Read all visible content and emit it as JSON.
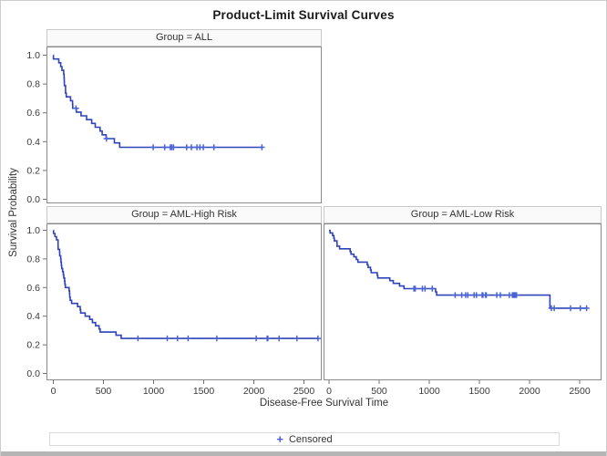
{
  "colors": {
    "curve": "#2e44b8",
    "censor": "#4a63d4",
    "panel_border": "#8a8a8a",
    "header_bg": "#fafafa",
    "header_border": "#c9c9c9",
    "text": "#3a3a3a",
    "tick": "#707070",
    "figure_border": "#cccccc",
    "bottom_bar": "#b5b5b5",
    "background": "#ffffff"
  },
  "legend": {
    "marker_char": "+",
    "label": "Censored"
  },
  "chart_data": {
    "type": "line",
    "subtype": "kaplan-meier-step",
    "title": "Product-Limit Survival Curves",
    "xlabel": "Disease-Free Survival Time",
    "ylabel": "Survival Probability",
    "xlim": [
      0,
      2700
    ],
    "ylim": [
      0,
      1.0
    ],
    "x_ticks": [
      0,
      500,
      1000,
      1500,
      2000,
      2500
    ],
    "y_ticks": [
      "1.0",
      "0.8",
      "0.6",
      "0.4",
      "0.2",
      "0.0"
    ],
    "grid": false,
    "legend": {
      "label": "Censored",
      "marker": "plus",
      "position": "bottom-center"
    },
    "panels": [
      {
        "group": "Group = ALL",
        "position": "top-left",
        "points": [
          [
            1,
            0.9737
          ],
          [
            55,
            0.9474
          ],
          [
            74,
            0.9211
          ],
          [
            86,
            0.8947
          ],
          [
            104,
            0.8684
          ],
          [
            107,
            0.8421
          ],
          [
            109,
            0.8158
          ],
          [
            110,
            0.7895
          ],
          [
            122,
            0.7368
          ],
          [
            129,
            0.7105
          ],
          [
            172,
            0.6842
          ],
          [
            192,
            0.6579
          ],
          [
            194,
            0.6316
          ],
          [
            230,
            0.6053
          ],
          [
            276,
            0.5789
          ],
          [
            332,
            0.5526
          ],
          [
            383,
            0.5263
          ],
          [
            418,
            0.5
          ],
          [
            466,
            0.4737
          ],
          [
            487,
            0.4474
          ],
          [
            526,
            0.4211
          ],
          [
            609,
            0.391
          ],
          [
            662,
            0.3609
          ]
        ],
        "censored": [
          [
            226,
            0.6316
          ],
          [
            530,
            0.4211
          ],
          [
            996,
            0.3609
          ],
          [
            1111,
            0.3609
          ],
          [
            1167,
            0.3609
          ],
          [
            1182,
            0.3609
          ],
          [
            1199,
            0.3609
          ],
          [
            1330,
            0.3609
          ],
          [
            1377,
            0.3609
          ],
          [
            1433,
            0.3609
          ],
          [
            1462,
            0.3609
          ],
          [
            1496,
            0.3609
          ],
          [
            1602,
            0.3609
          ],
          [
            2081,
            0.3609
          ]
        ],
        "end": 2081
      },
      {
        "group": "Group = AML-High Risk",
        "position": "bottom-left",
        "points": [
          [
            2,
            0.9778
          ],
          [
            16,
            0.9556
          ],
          [
            32,
            0.9333
          ],
          [
            47,
            0.8889
          ],
          [
            48,
            0.8667
          ],
          [
            63,
            0.8444
          ],
          [
            64,
            0.8222
          ],
          [
            74,
            0.8
          ],
          [
            76,
            0.7778
          ],
          [
            80,
            0.7556
          ],
          [
            84,
            0.7333
          ],
          [
            93,
            0.7111
          ],
          [
            100,
            0.6889
          ],
          [
            105,
            0.6667
          ],
          [
            113,
            0.6444
          ],
          [
            115,
            0.6222
          ],
          [
            120,
            0.6
          ],
          [
            157,
            0.5778
          ],
          [
            162,
            0.5556
          ],
          [
            164,
            0.5333
          ],
          [
            168,
            0.5111
          ],
          [
            183,
            0.4889
          ],
          [
            242,
            0.4667
          ],
          [
            268,
            0.4444
          ],
          [
            273,
            0.4222
          ],
          [
            318,
            0.4
          ],
          [
            363,
            0.3778
          ],
          [
            390,
            0.3556
          ],
          [
            422,
            0.3333
          ],
          [
            456,
            0.3111
          ],
          [
            467,
            0.2889
          ],
          [
            625,
            0.2667
          ],
          [
            677,
            0.2444
          ]
        ],
        "censored": [
          [
            845,
            0.2444
          ],
          [
            1136,
            0.2444
          ],
          [
            1238,
            0.2444
          ],
          [
            1345,
            0.2444
          ],
          [
            1631,
            0.2444
          ],
          [
            2024,
            0.2444
          ],
          [
            2133,
            0.2444
          ],
          [
            2140,
            0.2444
          ],
          [
            2252,
            0.2444
          ],
          [
            2430,
            0.2444
          ],
          [
            2640,
            0.2444
          ]
        ],
        "end": 2640
      },
      {
        "group": "Group = AML-Low Risk",
        "position": "bottom-right",
        "points": [
          [
            10,
            0.9815
          ],
          [
            35,
            0.963
          ],
          [
            48,
            0.9444
          ],
          [
            53,
            0.9259
          ],
          [
            79,
            0.9074
          ],
          [
            80,
            0.8889
          ],
          [
            105,
            0.8704
          ],
          [
            211,
            0.8519
          ],
          [
            219,
            0.8333
          ],
          [
            248,
            0.8148
          ],
          [
            272,
            0.7963
          ],
          [
            288,
            0.7778
          ],
          [
            381,
            0.7593
          ],
          [
            390,
            0.7407
          ],
          [
            414,
            0.7222
          ],
          [
            421,
            0.7037
          ],
          [
            481,
            0.6852
          ],
          [
            486,
            0.6667
          ],
          [
            606,
            0.6481
          ],
          [
            641,
            0.6296
          ],
          [
            704,
            0.6111
          ],
          [
            748,
            0.5926
          ],
          [
            1063,
            0.5698
          ],
          [
            1074,
            0.547
          ],
          [
            2204,
            0.4558
          ]
        ],
        "censored": [
          [
            847,
            0.5926
          ],
          [
            848,
            0.5926
          ],
          [
            860,
            0.5926
          ],
          [
            932,
            0.5926
          ],
          [
            957,
            0.5926
          ],
          [
            1030,
            0.5926
          ],
          [
            1258,
            0.547
          ],
          [
            1324,
            0.547
          ],
          [
            1363,
            0.547
          ],
          [
            1384,
            0.547
          ],
          [
            1447,
            0.547
          ],
          [
            1470,
            0.547
          ],
          [
            1527,
            0.547
          ],
          [
            1535,
            0.547
          ],
          [
            1562,
            0.547
          ],
          [
            1568,
            0.547
          ],
          [
            1674,
            0.547
          ],
          [
            1709,
            0.547
          ],
          [
            1799,
            0.547
          ],
          [
            1829,
            0.547
          ],
          [
            1843,
            0.547
          ],
          [
            1850,
            0.547
          ],
          [
            1857,
            0.547
          ],
          [
            1870,
            0.547
          ],
          [
            2218,
            0.4558
          ],
          [
            2246,
            0.4558
          ],
          [
            2409,
            0.4558
          ],
          [
            2506,
            0.4558
          ],
          [
            2569,
            0.4558
          ]
        ],
        "end": 2569
      }
    ]
  }
}
